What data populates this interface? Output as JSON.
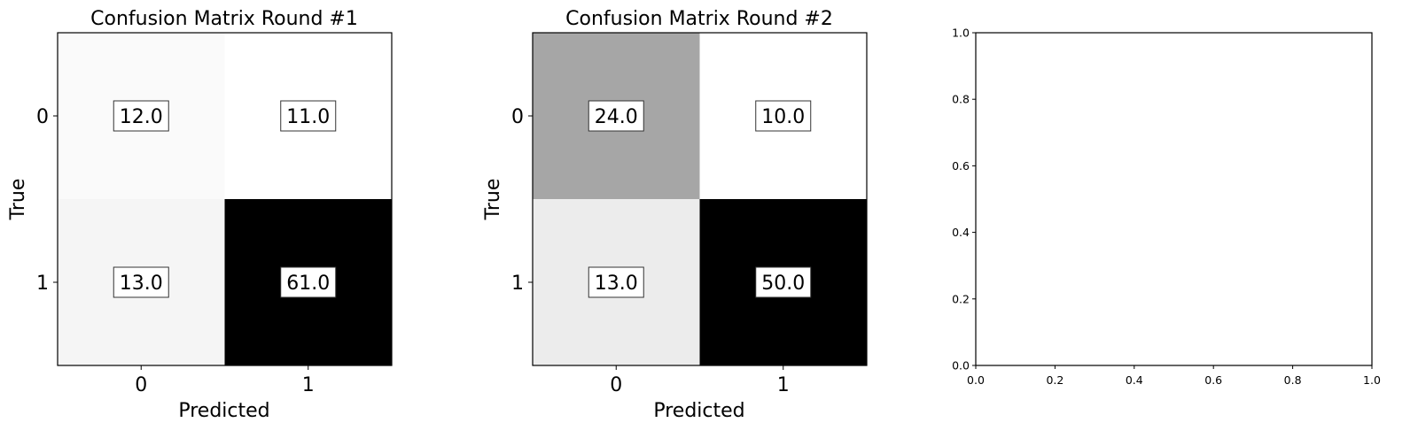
{
  "chart_data": [
    {
      "type": "heatmap",
      "title": "Confusion Matrix Round #1",
      "xlabel": "Predicted",
      "ylabel": "True",
      "x_tick_labels": [
        "0",
        "1"
      ],
      "y_tick_labels": [
        "0",
        "1"
      ],
      "matrix": [
        [
          12.0,
          11.0
        ],
        [
          13.0,
          61.0
        ]
      ],
      "cell_labels": [
        [
          "12.0",
          "11.0"
        ],
        [
          "13.0",
          "61.0"
        ]
      ],
      "colormap": "Greys"
    },
    {
      "type": "heatmap",
      "title": "Confusion Matrix Round #2",
      "xlabel": "Predicted",
      "ylabel": "True",
      "x_tick_labels": [
        "0",
        "1"
      ],
      "y_tick_labels": [
        "0",
        "1"
      ],
      "matrix": [
        [
          24.0,
          10.0
        ],
        [
          13.0,
          50.0
        ]
      ],
      "cell_labels": [
        [
          "24.0",
          "10.0"
        ],
        [
          "13.0",
          "50.0"
        ]
      ],
      "colormap": "Greys"
    },
    {
      "type": "scatter",
      "title": "",
      "xlabel": "",
      "ylabel": "",
      "xlim": [
        0.0,
        1.0
      ],
      "ylim": [
        0.0,
        1.0
      ],
      "x_tick_labels": [
        "0.0",
        "0.2",
        "0.4",
        "0.6",
        "0.8",
        "1.0"
      ],
      "y_tick_labels": [
        "0.0",
        "0.2",
        "0.4",
        "0.6",
        "0.8",
        "1.0"
      ],
      "series": []
    }
  ]
}
